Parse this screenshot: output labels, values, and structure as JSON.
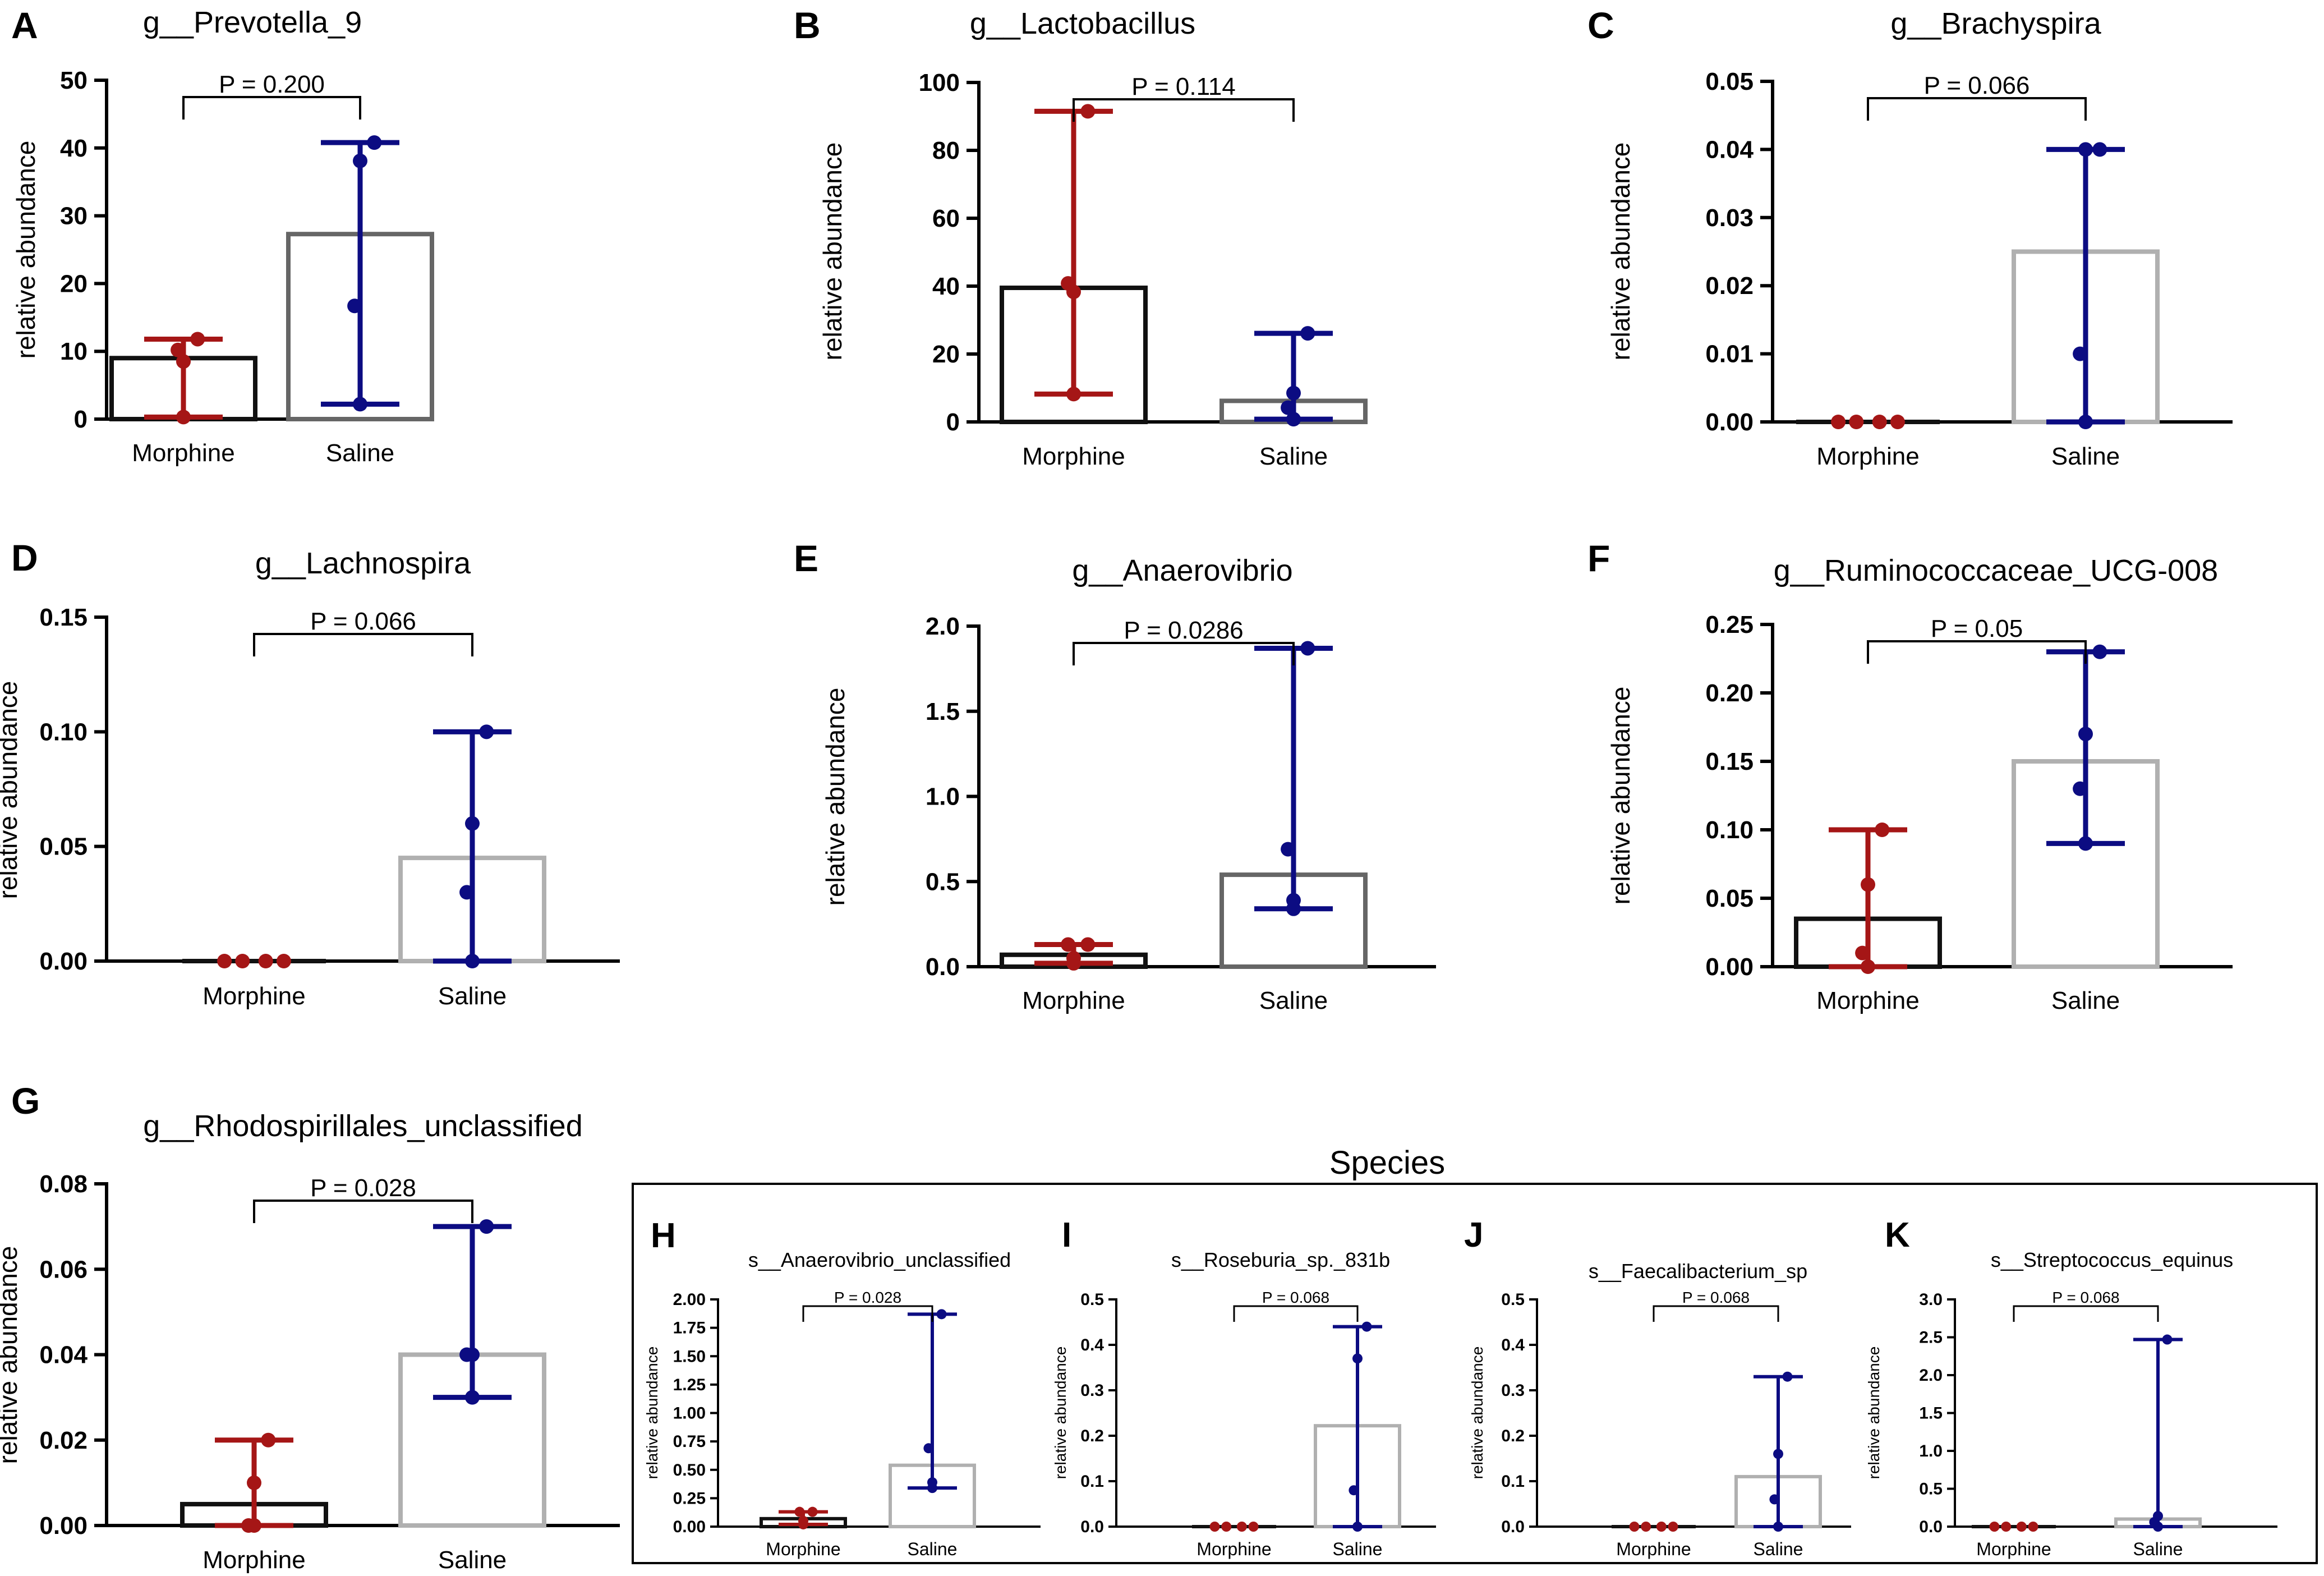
{
  "colors": {
    "morphine": "#a51616",
    "saline": "#0c0c82",
    "bar_morphine": "#111111",
    "bar_saline_dark": "#666666",
    "bar_saline_light": "#b0b0b0"
  },
  "species_title": "Species",
  "chart_data": [
    {
      "id": "A",
      "type": "bar",
      "title": "g__Prevotella_9",
      "ylabel": "relative abundance",
      "categories": [
        "Morphine",
        "Saline"
      ],
      "ylim": [
        0,
        50
      ],
      "yticks": [
        "0",
        "10",
        "20",
        "30",
        "40",
        "50"
      ],
      "pvalue": "P = 0.200",
      "bars": [
        9,
        27.3
      ],
      "saline_bar_style": "dark",
      "points": [
        [
          0.3,
          10.2,
          8.5,
          11.8
        ],
        [
          2.2,
          16.7,
          38.1,
          40.8
        ]
      ],
      "ranges": [
        [
          0.3,
          11.8
        ],
        [
          2.2,
          40.8
        ]
      ]
    },
    {
      "id": "B",
      "type": "bar",
      "title": "g__Lactobacillus",
      "ylabel": "relative abundance",
      "categories": [
        "Morphine",
        "Saline"
      ],
      "ylim": [
        0,
        100
      ],
      "yticks": [
        "0",
        "20",
        "40",
        "60",
        "80",
        "100"
      ],
      "pvalue": "P = 0.114",
      "bars": [
        39.5,
        6.2
      ],
      "saline_bar_style": "dark",
      "points": [
        [
          8.2,
          40.8,
          38.3,
          91.5
        ],
        [
          0.8,
          4.2,
          8.5,
          26.1
        ]
      ],
      "ranges": [
        [
          8.2,
          91.5
        ],
        [
          0.8,
          26.1
        ]
      ]
    },
    {
      "id": "C",
      "type": "bar",
      "title": "g__Brachyspira",
      "ylabel": "relative abundance",
      "categories": [
        "Morphine",
        "Saline"
      ],
      "ylim": [
        0,
        0.05
      ],
      "yticks": [
        "0.00",
        "0.01",
        "0.02",
        "0.03",
        "0.04",
        "0.05"
      ],
      "pvalue": "P = 0.066",
      "bars": [
        0,
        0.025
      ],
      "saline_bar_style": "light",
      "points": [
        [
          0,
          0,
          0,
          0
        ],
        [
          0,
          0.01,
          0.04,
          0.04
        ]
      ],
      "ranges": [
        [
          0,
          0
        ],
        [
          0,
          0.04
        ]
      ]
    },
    {
      "id": "D",
      "type": "bar",
      "title": "g__Lachnospira",
      "ylabel": "relative abundance",
      "categories": [
        "Morphine",
        "Saline"
      ],
      "ylim": [
        0,
        0.15
      ],
      "yticks": [
        "0.00",
        "0.05",
        "0.10",
        "0.15"
      ],
      "pvalue": "P = 0.066",
      "bars": [
        0,
        0.045
      ],
      "saline_bar_style": "light",
      "points": [
        [
          0,
          0,
          0,
          0
        ],
        [
          0,
          0.03,
          0.06,
          0.1
        ]
      ],
      "ranges": [
        [
          0,
          0
        ],
        [
          0,
          0.1
        ]
      ]
    },
    {
      "id": "E",
      "type": "bar",
      "title": "g__Anaerovibrio",
      "ylabel": "relative abundance",
      "categories": [
        "Morphine",
        "Saline"
      ],
      "ylim": [
        0,
        2.0
      ],
      "yticks": [
        "0.0",
        "0.5",
        "1.0",
        "1.5",
        "2.0"
      ],
      "pvalue": "P = 0.0286",
      "bars": [
        0.07,
        0.54
      ],
      "saline_bar_style": "dark",
      "points": [
        [
          0.02,
          0.13,
          0.05,
          0.13
        ],
        [
          0.34,
          0.69,
          0.39,
          1.87
        ]
      ],
      "ranges": [
        [
          0.02,
          0.13
        ],
        [
          0.34,
          1.87
        ]
      ]
    },
    {
      "id": "F",
      "type": "bar",
      "title": "g__Ruminococcaceae_UCG-008",
      "ylabel": "relative abundance",
      "categories": [
        "Morphine",
        "Saline"
      ],
      "ylim": [
        0,
        0.25
      ],
      "yticks": [
        "0.00",
        "0.05",
        "0.10",
        "0.15",
        "0.20",
        "0.25"
      ],
      "pvalue": "P = 0.05",
      "bars": [
        0.035,
        0.15
      ],
      "saline_bar_style": "light",
      "points": [
        [
          0,
          0.01,
          0.06,
          0.1
        ],
        [
          0.09,
          0.13,
          0.17,
          0.23
        ]
      ],
      "ranges": [
        [
          0,
          0.1
        ],
        [
          0.09,
          0.23
        ]
      ]
    },
    {
      "id": "G",
      "type": "bar",
      "title": "g__Rhodospirillales_unclassified",
      "ylabel": "relative abundance",
      "categories": [
        "Morphine",
        "Saline"
      ],
      "ylim": [
        0,
        0.08
      ],
      "yticks": [
        "0.00",
        "0.02",
        "0.04",
        "0.06",
        "0.08"
      ],
      "pvalue": "P = 0.028",
      "bars": [
        0.005,
        0.04
      ],
      "saline_bar_style": "light",
      "points": [
        [
          0,
          0,
          0.01,
          0.02
        ],
        [
          0.03,
          0.04,
          0.04,
          0.07
        ]
      ],
      "ranges": [
        [
          0,
          0.02
        ],
        [
          0.03,
          0.07
        ]
      ]
    },
    {
      "id": "H",
      "type": "bar",
      "title": "s__Anaerovibrio_unclassified",
      "ylabel": "relative abundance",
      "categories": [
        "Morphine",
        "Saline"
      ],
      "ylim": [
        0,
        2.0
      ],
      "yticks": [
        "0.00",
        "0.25",
        "0.50",
        "0.75",
        "1.00",
        "1.25",
        "1.50",
        "1.75",
        "2.00"
      ],
      "pvalue": "P = 0.028",
      "bars": [
        0.07,
        0.54
      ],
      "saline_bar_style": "light",
      "points": [
        [
          0.02,
          0.13,
          0.05,
          0.13
        ],
        [
          0.34,
          0.69,
          0.39,
          1.87
        ]
      ],
      "ranges": [
        [
          0.02,
          0.13
        ],
        [
          0.34,
          1.87
        ]
      ]
    },
    {
      "id": "I",
      "type": "bar",
      "title": "s__Roseburia_sp._831b",
      "ylabel": "relative abundance",
      "categories": [
        "Morphine",
        "Saline"
      ],
      "ylim": [
        0,
        0.5
      ],
      "yticks": [
        "0.0",
        "0.1",
        "0.2",
        "0.3",
        "0.4",
        "0.5"
      ],
      "pvalue": "P = 0.068",
      "bars": [
        0,
        0.222
      ],
      "saline_bar_style": "light",
      "points": [
        [
          0,
          0,
          0,
          0
        ],
        [
          0,
          0.08,
          0.37,
          0.44
        ]
      ],
      "ranges": [
        [
          0,
          0
        ],
        [
          0,
          0.44
        ]
      ]
    },
    {
      "id": "J",
      "type": "bar",
      "title": "s__Faecalibacterium_sp",
      "ylabel": "relative abundance",
      "categories": [
        "Morphine",
        "Saline"
      ],
      "ylim": [
        0,
        0.5
      ],
      "yticks": [
        "0.0",
        "0.1",
        "0.2",
        "0.3",
        "0.4",
        "0.5"
      ],
      "pvalue": "P = 0.068",
      "bars": [
        0,
        0.11
      ],
      "saline_bar_style": "light",
      "points": [
        [
          0,
          0,
          0,
          0
        ],
        [
          0,
          0.06,
          0.16,
          0.33
        ]
      ],
      "ranges": [
        [
          0,
          0
        ],
        [
          0,
          0.33
        ]
      ]
    },
    {
      "id": "K",
      "type": "bar",
      "title": "s__Streptococcus_equinus",
      "ylabel": "relative abundance",
      "categories": [
        "Morphine",
        "Saline"
      ],
      "ylim": [
        0,
        3.0
      ],
      "yticks": [
        "0.0",
        "0.5",
        "1.0",
        "1.5",
        "2.0",
        "2.5",
        "3.0"
      ],
      "pvalue": "P = 0.068",
      "bars": [
        0,
        0.1
      ],
      "saline_bar_style": "light",
      "points": [
        [
          0,
          0,
          0,
          0
        ],
        [
          0,
          0.06,
          0.14,
          2.47
        ]
      ],
      "ranges": [
        [
          0,
          0
        ],
        [
          0,
          2.47
        ]
      ]
    }
  ]
}
